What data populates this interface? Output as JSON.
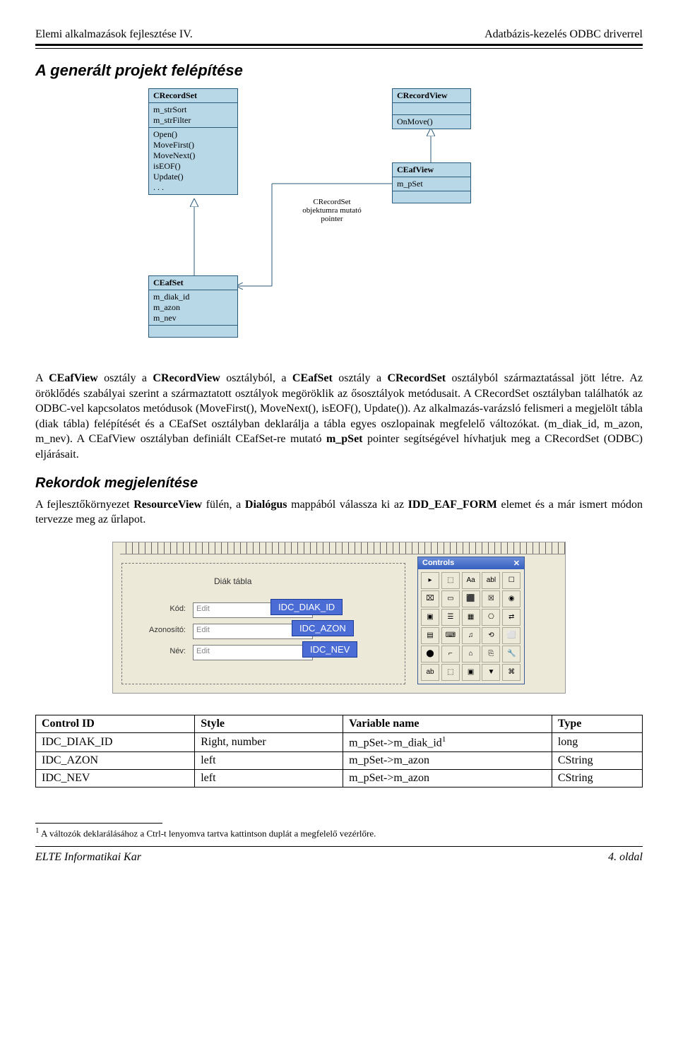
{
  "header": {
    "left": "Elemi alkalmazások fejlesztése IV.",
    "right": "Adatbázis-kezelés ODBC driverrel"
  },
  "section1_title": "A generált projekt felépítése",
  "uml": {
    "recordset": {
      "title": "CRecordSet",
      "attrs": "m_strSort\nm_strFilter",
      "ops": "Open()\nMoveFirst()\nMoveNext()\nisEOF()\nUpdate()\n. . ."
    },
    "eafset": {
      "title": "CEafSet",
      "attrs": "m_diak_id\nm_azon\nm_nev"
    },
    "recordview": {
      "title": "CRecordView",
      "ops": "OnMove()"
    },
    "eafview": {
      "title": "CEafView",
      "attrs": "m_pSet"
    },
    "note": "CRecordSet\nobjektumra mutató\npointer"
  },
  "para1_parts": {
    "p1": "A ",
    "b1": "CEafView",
    "p2": " osztály a ",
    "b2": "CRecordView",
    "p3": " osztályból, a ",
    "b3": "CEafSet",
    "p4": " osztály a ",
    "b4": "CRecordSet",
    "p5": " osztályból származtatással jött létre. Az öröklődés szabályai szerint a származtatott osztályok megöröklik az ősosztályok metódusait. A CRecordSet osztályban találhatók az ODBC-vel kapcsolatos metódusok (MoveFirst(), MoveNext(), isEOF(), Update()). Az alkalmazás-varázsló felismeri a megjelölt tábla (diak tábla) felépítését és a CEafSet osztályban deklarálja a tábla egyes oszlopainak megfelelő változókat. (m_diak_id, m_azon, m_nev). A CEafView osztályban definiált CEafSet-re mutató ",
    "b5": "m_pSet",
    "p6": " pointer segítségével hívhatjuk meg a CRecordSet (ODBC) eljárásait."
  },
  "section2_title": "Rekordok megjelenítése",
  "para2_parts": {
    "p1": "A fejlesztőkörnyezet ",
    "b1": "ResourceView",
    "p2": " fülén, a ",
    "b2": "Dialógus",
    "p3": " mappából válassza ki az ",
    "b3": "IDD_EAF_FORM",
    "p4": " elemet és a már ismert módon tervezze meg az űrlapot."
  },
  "form": {
    "title": "Diák tábla",
    "labels": {
      "kod": "Kód:",
      "azon": "Azonosító:",
      "nev": "Név:"
    },
    "placeholder": "Edit",
    "callouts": {
      "c1": "IDC_DIAK_ID",
      "c2": "IDC_AZON",
      "c3": "IDC_NEV"
    },
    "palette_title": "Controls",
    "palette_close": "✕",
    "palette_icons": [
      "▸",
      "⬚",
      "Aa",
      "abl",
      "☐",
      "⌧",
      "▭",
      "⬛",
      "☒",
      "◉",
      "▣",
      "☰",
      "▦",
      "⎔",
      "⇄",
      "▤",
      "⌨",
      "♫",
      "⟲",
      "⬜",
      "⬤",
      "⌐",
      "⌂",
      "⎘",
      "🔧",
      "ab",
      "⬚",
      "▣",
      "▼",
      "⌘"
    ]
  },
  "table": {
    "headers": [
      "Control ID",
      "Style",
      "Variable name",
      "Type"
    ],
    "rows": [
      [
        "IDC_DIAK_ID",
        "Right, number",
        "m_pSet->m_diak_id",
        "long"
      ],
      [
        "IDC_AZON",
        "left",
        "m_pSet->m_azon",
        "CString"
      ],
      [
        "IDC_NEV",
        "left",
        "m_pSet->m_azon",
        "CString"
      ]
    ],
    "sup": "1"
  },
  "footnote": {
    "num": "1",
    "text": " A változók deklarálásához a Ctrl-t lenyomva tartva kattintson duplát a megfelelő vezérlőre."
  },
  "footer": {
    "left": "ELTE Informatikai Kar",
    "right": "4. oldal"
  }
}
